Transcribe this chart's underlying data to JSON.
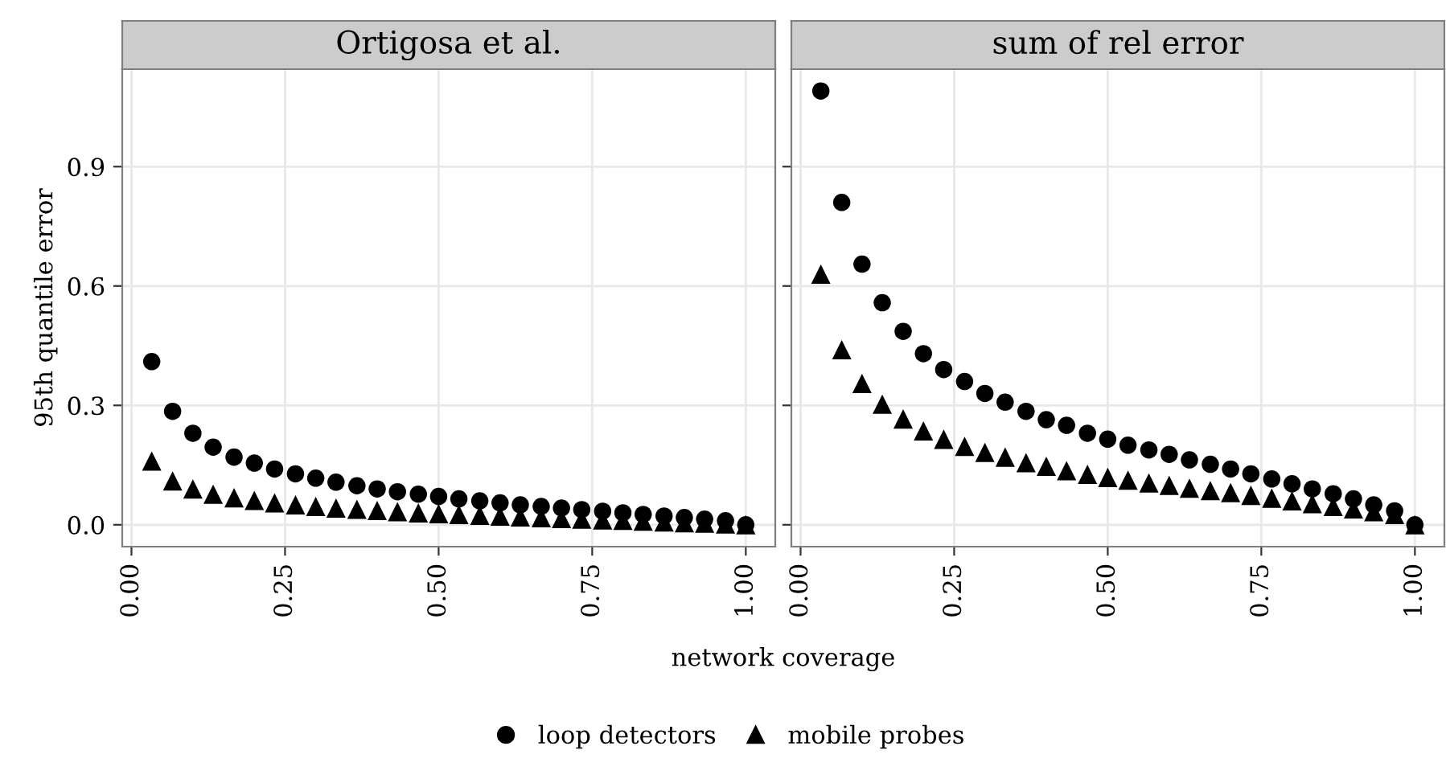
{
  "chart_data": [
    {
      "type": "scatter",
      "title": "Ortigosa et al.",
      "xlabel": "network coverage",
      "ylabel": "95th quantile error",
      "x": [
        0.033,
        0.067,
        0.1,
        0.133,
        0.167,
        0.2,
        0.233,
        0.267,
        0.3,
        0.333,
        0.367,
        0.4,
        0.433,
        0.467,
        0.5,
        0.533,
        0.567,
        0.6,
        0.633,
        0.667,
        0.7,
        0.733,
        0.767,
        0.8,
        0.833,
        0.867,
        0.9,
        0.933,
        0.967,
        1.0
      ],
      "series": [
        {
          "name": "loop detectors",
          "color": "#000000",
          "marker": "circle",
          "values": [
            0.41,
            0.285,
            0.23,
            0.195,
            0.17,
            0.155,
            0.14,
            0.128,
            0.117,
            0.107,
            0.098,
            0.09,
            0.083,
            0.077,
            0.071,
            0.065,
            0.06,
            0.055,
            0.05,
            0.046,
            0.042,
            0.038,
            0.034,
            0.03,
            0.026,
            0.022,
            0.018,
            0.014,
            0.01,
            0.0
          ]
        },
        {
          "name": "mobile probes",
          "color": "#000000",
          "marker": "triangle",
          "values": [
            0.16,
            0.11,
            0.09,
            0.077,
            0.068,
            0.061,
            0.055,
            0.05,
            0.046,
            0.042,
            0.039,
            0.036,
            0.033,
            0.03,
            0.028,
            0.026,
            0.024,
            0.022,
            0.02,
            0.018,
            0.016,
            0.014,
            0.012,
            0.011,
            0.009,
            0.007,
            0.005,
            0.004,
            0.002,
            0.0
          ]
        }
      ],
      "xlim": [
        -0.015,
        1.048
      ],
      "ylim": [
        -0.055,
        1.145
      ],
      "xticks": [
        {
          "value": 0,
          "label": "0.00"
        },
        {
          "value": 0.25,
          "label": "0.25"
        },
        {
          "value": 0.5,
          "label": "0.50"
        },
        {
          "value": 0.75,
          "label": "0.75"
        },
        {
          "value": 1,
          "label": "1.00"
        }
      ],
      "yticks": [
        {
          "value": 0,
          "label": "0.0"
        },
        {
          "value": 0.3,
          "label": "0.3"
        },
        {
          "value": 0.6,
          "label": "0.6"
        },
        {
          "value": 0.9,
          "label": "0.9"
        }
      ],
      "grid": true,
      "legend": "bottom"
    },
    {
      "type": "scatter",
      "title": "sum of rel error",
      "x": [
        0.033,
        0.067,
        0.1,
        0.133,
        0.167,
        0.2,
        0.233,
        0.267,
        0.3,
        0.333,
        0.367,
        0.4,
        0.433,
        0.467,
        0.5,
        0.533,
        0.567,
        0.6,
        0.633,
        0.667,
        0.7,
        0.733,
        0.767,
        0.8,
        0.833,
        0.867,
        0.9,
        0.933,
        0.967,
        1.0
      ],
      "series": [
        {
          "color": "#000000",
          "marker": "circle",
          "values": [
            1.09,
            0.81,
            0.655,
            0.558,
            0.486,
            0.43,
            0.39,
            0.36,
            0.33,
            0.308,
            0.285,
            0.264,
            0.25,
            0.23,
            0.215,
            0.2,
            0.188,
            0.177,
            0.163,
            0.152,
            0.14,
            0.128,
            0.115,
            0.103,
            0.09,
            0.078,
            0.065,
            0.05,
            0.035,
            0.0
          ]
        },
        {
          "color": "#000000",
          "marker": "triangle",
          "values": [
            0.63,
            0.44,
            0.355,
            0.303,
            0.266,
            0.236,
            0.215,
            0.197,
            0.182,
            0.17,
            0.156,
            0.147,
            0.136,
            0.127,
            0.119,
            0.112,
            0.105,
            0.099,
            0.092,
            0.086,
            0.081,
            0.074,
            0.067,
            0.06,
            0.053,
            0.046,
            0.04,
            0.033,
            0.026,
            0.0
          ]
        }
      ],
      "xlim": [
        -0.015,
        1.048
      ],
      "ylim": [
        -0.055,
        1.145
      ],
      "xticks": [
        {
          "value": 0,
          "label": "0.00"
        },
        {
          "value": 0.25,
          "label": "0.25"
        },
        {
          "value": 0.5,
          "label": "0.50"
        },
        {
          "value": 0.75,
          "label": "0.75"
        },
        {
          "value": 1,
          "label": "1.00"
        }
      ],
      "yticks": [
        {
          "value": 0,
          "label": null
        },
        {
          "value": 0.3,
          "label": null
        },
        {
          "value": 0.6,
          "label": null
        },
        {
          "value": 0.9,
          "label": null
        }
      ],
      "grid": true,
      "tick_labels": "x"
    }
  ]
}
